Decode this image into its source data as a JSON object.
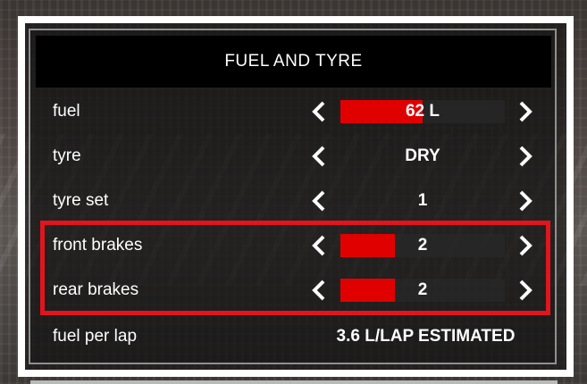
{
  "panel": {
    "title": "FUEL AND TYRE"
  },
  "rows": [
    {
      "label": "fuel",
      "value": "62 L",
      "fill": 0.5
    },
    {
      "label": "tyre",
      "value": "DRY"
    },
    {
      "label": "tyre set",
      "value": "1"
    },
    {
      "label": "front brakes",
      "value": "2",
      "fill": 0.33
    },
    {
      "label": "rear brakes",
      "value": "2",
      "fill": 0.33
    },
    {
      "label": "fuel per lap",
      "value": "3.6 L/LAP ESTIMATED"
    }
  ],
  "icons": {
    "decrease": "chevron-left-icon",
    "increase": "chevron-right-icon"
  },
  "colors": {
    "accent": "#e00000",
    "highlight": "#e0151d",
    "title_bg": "#000000",
    "frame": "#ffffff"
  }
}
